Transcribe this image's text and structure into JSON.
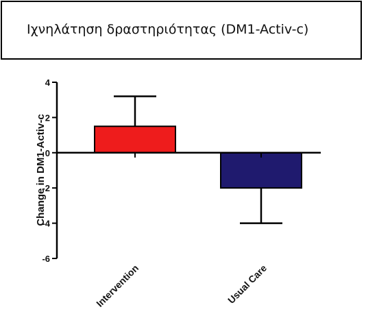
{
  "header": {
    "title": "Ιχνηλάτηση δραστηριότητας (DM1-Activ-c)"
  },
  "chart_data": {
    "type": "bar",
    "categories": [
      "Intervention",
      "Usual Care"
    ],
    "values": [
      1.5,
      -2.0
    ],
    "error_bars": [
      {
        "upper": 3.2
      },
      {
        "lower": -4.0
      }
    ],
    "bar_colors": [
      "#ee1c1c",
      "#1f1a6e"
    ],
    "title": "",
    "xlabel": "",
    "ylabel": "Change in  DM1-Activ-c",
    "ylim": [
      -6,
      4
    ],
    "yticks": [
      "4",
      "2",
      "0",
      "-2",
      "-4",
      "-6"
    ],
    "ytick_values": [
      4,
      2,
      0,
      -2,
      -4,
      -6
    ],
    "grid": false,
    "legend": false
  }
}
